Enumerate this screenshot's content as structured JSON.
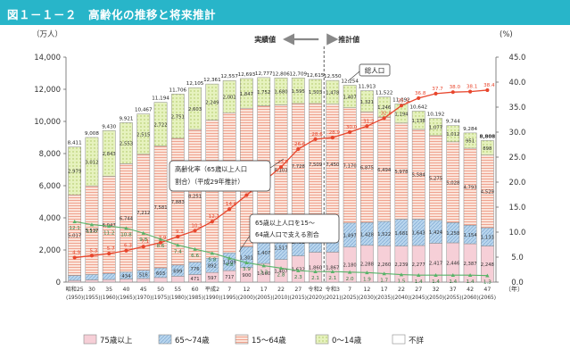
{
  "header": {
    "title": "図１－１－２　高齢化の推移と将来推計"
  },
  "chart_data": {
    "type": "bar",
    "title": "高齢化の推移と将来推計",
    "y_left_unit": "（万人）",
    "y_right_unit": "(%)",
    "ylim": [
      0,
      14000
    ],
    "ylim_right": [
      0,
      45
    ],
    "y_ticks": [
      "0",
      "2,000",
      "4,000",
      "6,000",
      "8,000",
      "10,000",
      "12,000",
      "14,000"
    ],
    "y_right_ticks": [
      "0.0",
      "5.0",
      "10.0",
      "15.0",
      "20.0",
      "25.0",
      "30.0",
      "35.0",
      "40.0",
      "45.0"
    ],
    "x_unit": "（年）",
    "categories": [
      {
        "era": "昭和25",
        "year": "(1950)"
      },
      {
        "era": "30",
        "year": "(1955)"
      },
      {
        "era": "35",
        "year": "(1960)"
      },
      {
        "era": "40",
        "year": "(1965)"
      },
      {
        "era": "45",
        "year": "(1970)"
      },
      {
        "era": "50",
        "year": "(1975)"
      },
      {
        "era": "55",
        "year": "(1980)"
      },
      {
        "era": "60",
        "year": "(1985)"
      },
      {
        "era": "平成2",
        "year": "(1990)"
      },
      {
        "era": "7",
        "year": "(1995)"
      },
      {
        "era": "12",
        "year": "(2000)"
      },
      {
        "era": "17",
        "year": "(2005)"
      },
      {
        "era": "22",
        "year": "(2010)"
      },
      {
        "era": "27",
        "year": "(2015)"
      },
      {
        "era": "令和2",
        "year": "(2020)"
      },
      {
        "era": "令和3",
        "year": "(2021)"
      },
      {
        "era": "7",
        "year": "(2025)"
      },
      {
        "era": "12",
        "year": "(2030)"
      },
      {
        "era": "17",
        "year": "(2035)"
      },
      {
        "era": "22",
        "year": "(2040)"
      },
      {
        "era": "27",
        "year": "(2045)"
      },
      {
        "era": "32",
        "year": "(2050)"
      },
      {
        "era": "37",
        "year": "(2055)"
      },
      {
        "era": "42",
        "year": "(2060)"
      },
      {
        "era": "47",
        "year": "(2065)"
      }
    ],
    "series": [
      {
        "name": "75歳以上",
        "color": "#f4c6cf",
        "values": [
          107,
          139,
          164,
          189,
          224,
          284,
          366,
          471,
          597,
          717,
          900,
          1160,
          1407,
          1632,
          1860,
          1867,
          2180,
          2288,
          2260,
          2239,
          2277,
          2417,
          2446,
          2387,
          2248
        ],
        "labels": [
          "107",
          "139",
          "164",
          "189",
          "224",
          "284",
          "366",
          "471",
          "597",
          "717",
          "900",
          "1,160",
          "1,407",
          "1,632",
          "1,860",
          "1,867",
          "2,180",
          "2,288",
          "2,260",
          "2,239",
          "2,277",
          "2,417",
          "2,446",
          "2,387",
          "2,248"
        ]
      },
      {
        "name": "65～74歳",
        "color": "#a9cbe7",
        "values": [
          309,
          336,
          376,
          434,
          516,
          603,
          699,
          776,
          892,
          1109,
          1301,
          1407,
          1517,
          1752,
          1742,
          1754,
          1497,
          1428,
          1522,
          1681,
          1643,
          1424,
          1258,
          1154,
          1133
        ],
        "labels": [
          "309",
          "336",
          "376",
          "434",
          "516",
          "603",
          "699",
          "776",
          "892",
          "1,109",
          "1,301",
          "1,407",
          "1,517",
          "1,752",
          "1,742",
          "1,754",
          "1,497",
          "1,428",
          "1,522",
          "1,681",
          "1,643",
          "1,424",
          "1,258",
          "1,154",
          "1,133"
        ]
      },
      {
        "name": "15～64歳",
        "color": "#f7cbbb",
        "values": [
          5017,
          5517,
          6047,
          6744,
          7212,
          7581,
          7883,
          8251,
          8590,
          8716,
          8622,
          8409,
          8103,
          7728,
          7509,
          7450,
          7170,
          6875,
          6494,
          5978,
          5584,
          5275,
          5028,
          4793,
          4529
        ],
        "labels": [
          "5,017",
          "5,517",
          "6,047",
          "6,744",
          "7,212",
          "7,581",
          "7,883",
          "8,251",
          "8,590",
          "8,716",
          "8,622",
          "8,409",
          "8,103",
          "7,728",
          "7,509",
          "7,450",
          "7,170",
          "6,875",
          "6,494",
          "5,978",
          "5,584",
          "5,275",
          "5,028",
          "4,793",
          "4,529"
        ]
      },
      {
        "name": "0～14歳",
        "color": "#e1efb4",
        "values": [
          2979,
          3012,
          2843,
          2553,
          2515,
          2722,
          2751,
          2603,
          2249,
          2001,
          1847,
          1752,
          1680,
          1595,
          1503,
          1478,
          1407,
          1321,
          1246,
          1194,
          1138,
          1077,
          1012,
          951,
          898
        ],
        "labels": [
          "2,979",
          "3,012",
          "2,843",
          "2,553",
          "2,515",
          "2,722",
          "2,751",
          "2,603",
          "2,249",
          "2,001",
          "1,847",
          "1,752",
          "1,680",
          "1,595",
          "1,503",
          "1,478",
          "1,407",
          "1,321",
          "1,246",
          "1,194",
          "1,138",
          "1,077",
          "1,012",
          "951",
          "898"
        ]
      },
      {
        "name": "不詳",
        "color": "#ffffff",
        "values": [
          0,
          0,
          0,
          0,
          0,
          0,
          0,
          0,
          0,
          0,
          0,
          0,
          0,
          0,
          0,
          0,
          0,
          0,
          0,
          0,
          0,
          0,
          0,
          0,
          0
        ],
        "labels": []
      }
    ],
    "totals": [
      "8,411",
      "9,008",
      "9,430",
      "9,921",
      "10,467",
      "11,194",
      "11,706",
      "12,105",
      "12,361",
      "12,557",
      "12,693",
      "12,777",
      "12,806",
      "12,709",
      "12,615",
      "12,550",
      "12,254",
      "11,913",
      "11,522",
      "11,092",
      "10,642",
      "10,192",
      "9,744",
      "9,284",
      "8,808"
    ],
    "aging_rate": {
      "name": "高齢化率",
      "color": "#e8462d",
      "values": [
        4.9,
        5.3,
        5.7,
        6.3,
        7.1,
        7.9,
        9.1,
        10.3,
        12.1,
        14.6,
        17.4,
        20.2,
        23.0,
        26.6,
        28.6,
        28.9,
        30.0,
        31.2,
        32.8,
        35.3,
        36.8,
        37.7,
        38.0,
        38.1,
        38.4
      ],
      "labels": [
        "4.9",
        "5.3",
        "5.7",
        "6.3",
        "7.1",
        "7.9",
        "9.1",
        "10.3",
        "12.1",
        "14.6",
        "17.4",
        "20.2",
        "23.0",
        "26.6",
        "28.6",
        "28.9",
        "30.0",
        "31.2",
        "32.8",
        "35.3",
        "36.8",
        "37.7",
        "38.0",
        "38.1",
        "38.4"
      ]
    },
    "support_ratio": {
      "name": "65歳以上人口を15～64歳人口で支える割合",
      "color": "#58b368",
      "values": [
        12.1,
        11.5,
        11.2,
        10.8,
        9.8,
        8.6,
        7.4,
        6.6,
        5.8,
        4.8,
        3.9,
        3.3,
        2.8,
        2.3,
        2.1,
        2.1,
        2.0,
        1.9,
        1.7,
        1.5,
        1.4,
        1.4,
        1.4,
        1.4,
        1.3
      ],
      "labels": [
        "12.1",
        "11.5",
        "11.2",
        "10.8",
        "9.8",
        "8.6",
        "7.4",
        "6.6",
        "5.8",
        "4.8",
        "3.9",
        "3.3",
        "2.8",
        "2.3",
        "2.1",
        "2.1",
        "2.0",
        "1.9",
        "1.7",
        "1.5",
        "1.4",
        "1.4",
        "1.4",
        "1.4",
        "1.3"
      ]
    },
    "actual_label": "実績値",
    "forecast_label": "推計値",
    "annotations": {
      "total": "総人口",
      "aging": "高齢化率（65歳以上人口割合）（平成29年推計）",
      "support": "65歳以上人口を15～64歳人口で支える割合"
    },
    "legend": [
      "75歳以上",
      "65～74歳",
      "15～64歳",
      "0～14歳",
      "不詳"
    ],
    "legend_position": "bottom",
    "grid": false
  }
}
